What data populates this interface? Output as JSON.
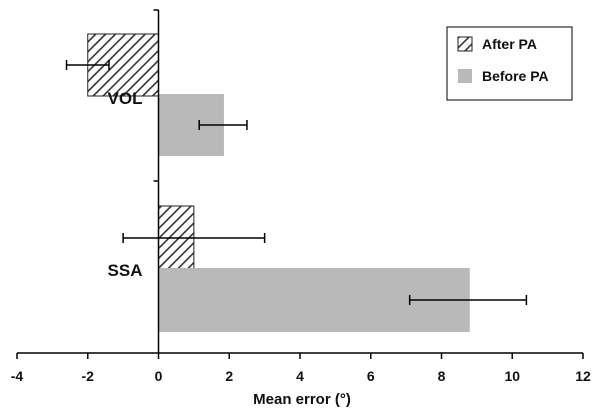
{
  "chart_data": {
    "type": "bar",
    "orientation": "horizontal",
    "xlabel": "Mean error (°)",
    "ylabel": "",
    "xlim": [
      -4,
      12
    ],
    "xticks": [
      -4,
      -2,
      0,
      2,
      4,
      6,
      8,
      10,
      12
    ],
    "categories": [
      "VOL",
      "SSA"
    ],
    "series": [
      {
        "name": "After PA",
        "values": [
          -2.0,
          1.0
        ],
        "error_low": [
          -2.6,
          -1.0
        ],
        "error_high": [
          -1.4,
          3.0
        ],
        "fill": "hatched",
        "color": "#3a3a3a"
      },
      {
        "name": "Before PA",
        "values": [
          1.85,
          8.8
        ],
        "error_low": [
          1.15,
          7.1
        ],
        "error_high": [
          2.5,
          10.4
        ],
        "fill": "solid",
        "color": "#b9b9b9"
      }
    ],
    "legend_position": "top-right",
    "grid": false
  }
}
